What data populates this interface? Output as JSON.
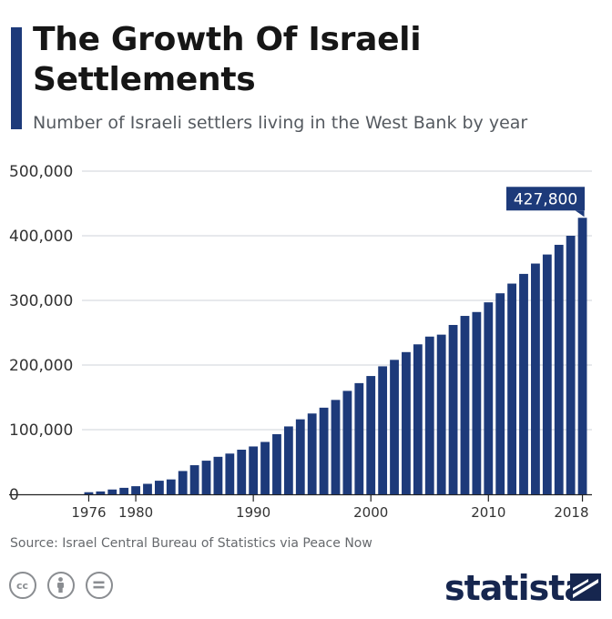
{
  "header": {
    "title": "The Growth Of Israeli Settlements",
    "subtitle": "Number of Israeli settlers living in the West Bank by year"
  },
  "footer": {
    "source": "Source: Israel Central Bureau of Statistics via Peace Now",
    "brand": "statista"
  },
  "colors": {
    "bar": "#1d3a7a",
    "accent": "#1d3a7a",
    "grid": "#cfd3d8",
    "axis_text": "#333333"
  },
  "chart_data": {
    "type": "bar",
    "title": "The Growth Of Israeli Settlements",
    "subtitle": "Number of Israeli settlers living in the West Bank by year",
    "xlabel": "",
    "ylabel": "",
    "ylim": [
      0,
      500000
    ],
    "yticks": [
      0,
      100000,
      200000,
      300000,
      400000,
      500000
    ],
    "ytick_labels": [
      "0",
      "100,000",
      "200,000",
      "300,000",
      "400,000",
      "500,000"
    ],
    "xtick_labels": [
      "1976",
      "1980",
      "1990",
      "2000",
      "2010",
      "2018"
    ],
    "grid": true,
    "categories": [
      1976,
      1977,
      1978,
      1979,
      1980,
      1981,
      1982,
      1983,
      1984,
      1985,
      1986,
      1987,
      1988,
      1989,
      1990,
      1991,
      1992,
      1993,
      1994,
      1995,
      1996,
      1997,
      1998,
      1999,
      2000,
      2001,
      2002,
      2003,
      2004,
      2005,
      2006,
      2007,
      2008,
      2009,
      2010,
      2011,
      2012,
      2013,
      2014,
      2015,
      2016,
      2017,
      2018
    ],
    "values": [
      3200,
      4400,
      7400,
      10000,
      12500,
      16200,
      21000,
      23000,
      36000,
      45000,
      52000,
      58000,
      63000,
      69000,
      74000,
      81000,
      93000,
      105000,
      116000,
      125000,
      134000,
      146000,
      160000,
      172000,
      183000,
      198000,
      208000,
      220000,
      232000,
      244000,
      247000,
      262000,
      276000,
      282000,
      297000,
      311000,
      326000,
      341000,
      357000,
      371000,
      386000,
      400000,
      427800
    ],
    "annotation": {
      "year": 2018,
      "label": "427,800"
    }
  }
}
